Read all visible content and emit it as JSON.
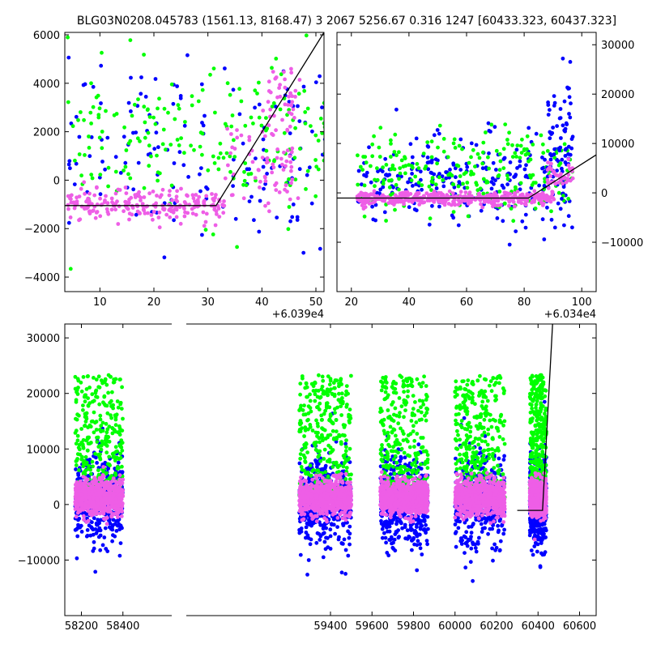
{
  "title": "BLG03N0208.045783 (1561.13, 8168.47)  3 2067 5256.67 0.316 1247 [60433.323, 60437.323]",
  "colors": {
    "series_a": "#0000ff",
    "series_b": "#00ff00",
    "series_c": "#ee5ee6",
    "fit_line": "#000000"
  },
  "chart_data": [
    {
      "type": "scatter",
      "panel": "top-left",
      "xlim": [
        60393.5,
        60441.5
      ],
      "ylim": [
        -4600,
        6100
      ],
      "x_offset_label": "+6.039e4",
      "x_ticks": [
        60400,
        60410,
        60420,
        60430,
        60440
      ],
      "x_tick_labels": [
        "10",
        "20",
        "30",
        "40",
        "50"
      ],
      "y_ticks": [
        -4000,
        -2000,
        0,
        2000,
        4000,
        6000
      ],
      "y_tick_labels": [
        "−4000",
        "−2000",
        "0",
        "2000",
        "4000",
        "6000"
      ],
      "y_axis_side": "left",
      "fit_line": {
        "x": [
          60393.5,
          60421.5,
          60441.5
        ],
        "y": [
          -1050,
          -1050,
          6100
        ]
      },
      "clusters": [
        {
          "series": 0,
          "x_range": [
            60394,
            60446
          ],
          "y_center": 1200,
          "y_spread": 2600,
          "count": 170
        },
        {
          "series": 1,
          "x_range": [
            60394,
            60446
          ],
          "y_center": 1700,
          "y_spread": 2200,
          "count": 210
        },
        {
          "series": 2,
          "x_range": [
            60394,
            60423
          ],
          "y_center": -1050,
          "y_spread": 450,
          "count": 220
        },
        {
          "series": 2,
          "x_range": [
            60423,
            60437
          ],
          "y_center": 600,
          "y_spread": 1300,
          "count": 70
        },
        {
          "series": 2,
          "x_range": [
            60431,
            60437
          ],
          "y_center": 3200,
          "y_spread": 1200,
          "count": 40
        }
      ]
    },
    {
      "type": "scatter",
      "panel": "top-right",
      "xlim": [
        60355,
        60445
      ],
      "ylim": [
        -20000,
        32500
      ],
      "x_offset_label": "+6.034e4",
      "x_ticks": [
        60360,
        60380,
        60400,
        60420,
        60440
      ],
      "x_tick_labels": [
        "20",
        "40",
        "60",
        "80",
        "100"
      ],
      "y_ticks": [
        -10000,
        0,
        10000,
        20000,
        30000
      ],
      "y_tick_labels": [
        "−10000",
        "0",
        "10000",
        "20000",
        "30000"
      ],
      "y_axis_side": "right",
      "fit_line": {
        "x": [
          60355,
          60421.5,
          60445
        ],
        "y": [
          -1050,
          -1050,
          7700
        ]
      },
      "clusters": [
        {
          "series": 0,
          "x_range": [
            60362,
            60437
          ],
          "y_center": 2500,
          "y_spread": 6500,
          "count": 260
        },
        {
          "series": 1,
          "x_range": [
            60362,
            60437
          ],
          "y_center": 3500,
          "y_spread": 6500,
          "count": 240
        },
        {
          "series": 2,
          "x_range": [
            60362,
            60430
          ],
          "y_center": -1100,
          "y_spread": 900,
          "count": 420
        },
        {
          "series": 0,
          "x_range": [
            60428,
            60437
          ],
          "y_center": 12000,
          "y_spread": 8000,
          "count": 60
        },
        {
          "series": 2,
          "x_range": [
            60428,
            60437
          ],
          "y_center": 3000,
          "y_spread": 2500,
          "count": 40
        }
      ]
    },
    {
      "type": "scatter",
      "panel": "bottom",
      "xlim": [
        58120,
        60680
      ],
      "ylim": [
        -20000,
        32500
      ],
      "x_ticks": [
        58200,
        58400,
        59400,
        59600,
        59800,
        60000,
        60200,
        60400,
        60600
      ],
      "x_tick_labels": [
        "58200",
        "58400",
        "59400",
        "59600",
        "59800",
        "60000",
        "60200",
        "60400",
        "60600"
      ],
      "y_ticks": [
        -10000,
        0,
        10000,
        20000,
        30000
      ],
      "y_tick_labels": [
        "−10000",
        "0",
        "10000",
        "20000",
        "30000"
      ],
      "y_axis_side": "left",
      "fit_line": {
        "x": [
          60300,
          60421.5,
          60470
        ],
        "y": [
          -1050,
          -1050,
          32500
        ]
      },
      "seasons": [
        [
          58170,
          58400
        ],
        [
          59250,
          59500
        ],
        [
          59640,
          59870
        ],
        [
          60000,
          60240
        ],
        [
          60360,
          60440
        ]
      ],
      "clusters": [
        {
          "series": 0,
          "y_center": 500,
          "y_spread": 7000,
          "count_per_season": 420
        },
        {
          "series": 1,
          "y_center": 9000,
          "y_spread": 10000,
          "count_per_season": 300
        },
        {
          "series": 2,
          "y_center": 1200,
          "y_spread": 2600,
          "count_per_season": 700
        }
      ]
    }
  ]
}
